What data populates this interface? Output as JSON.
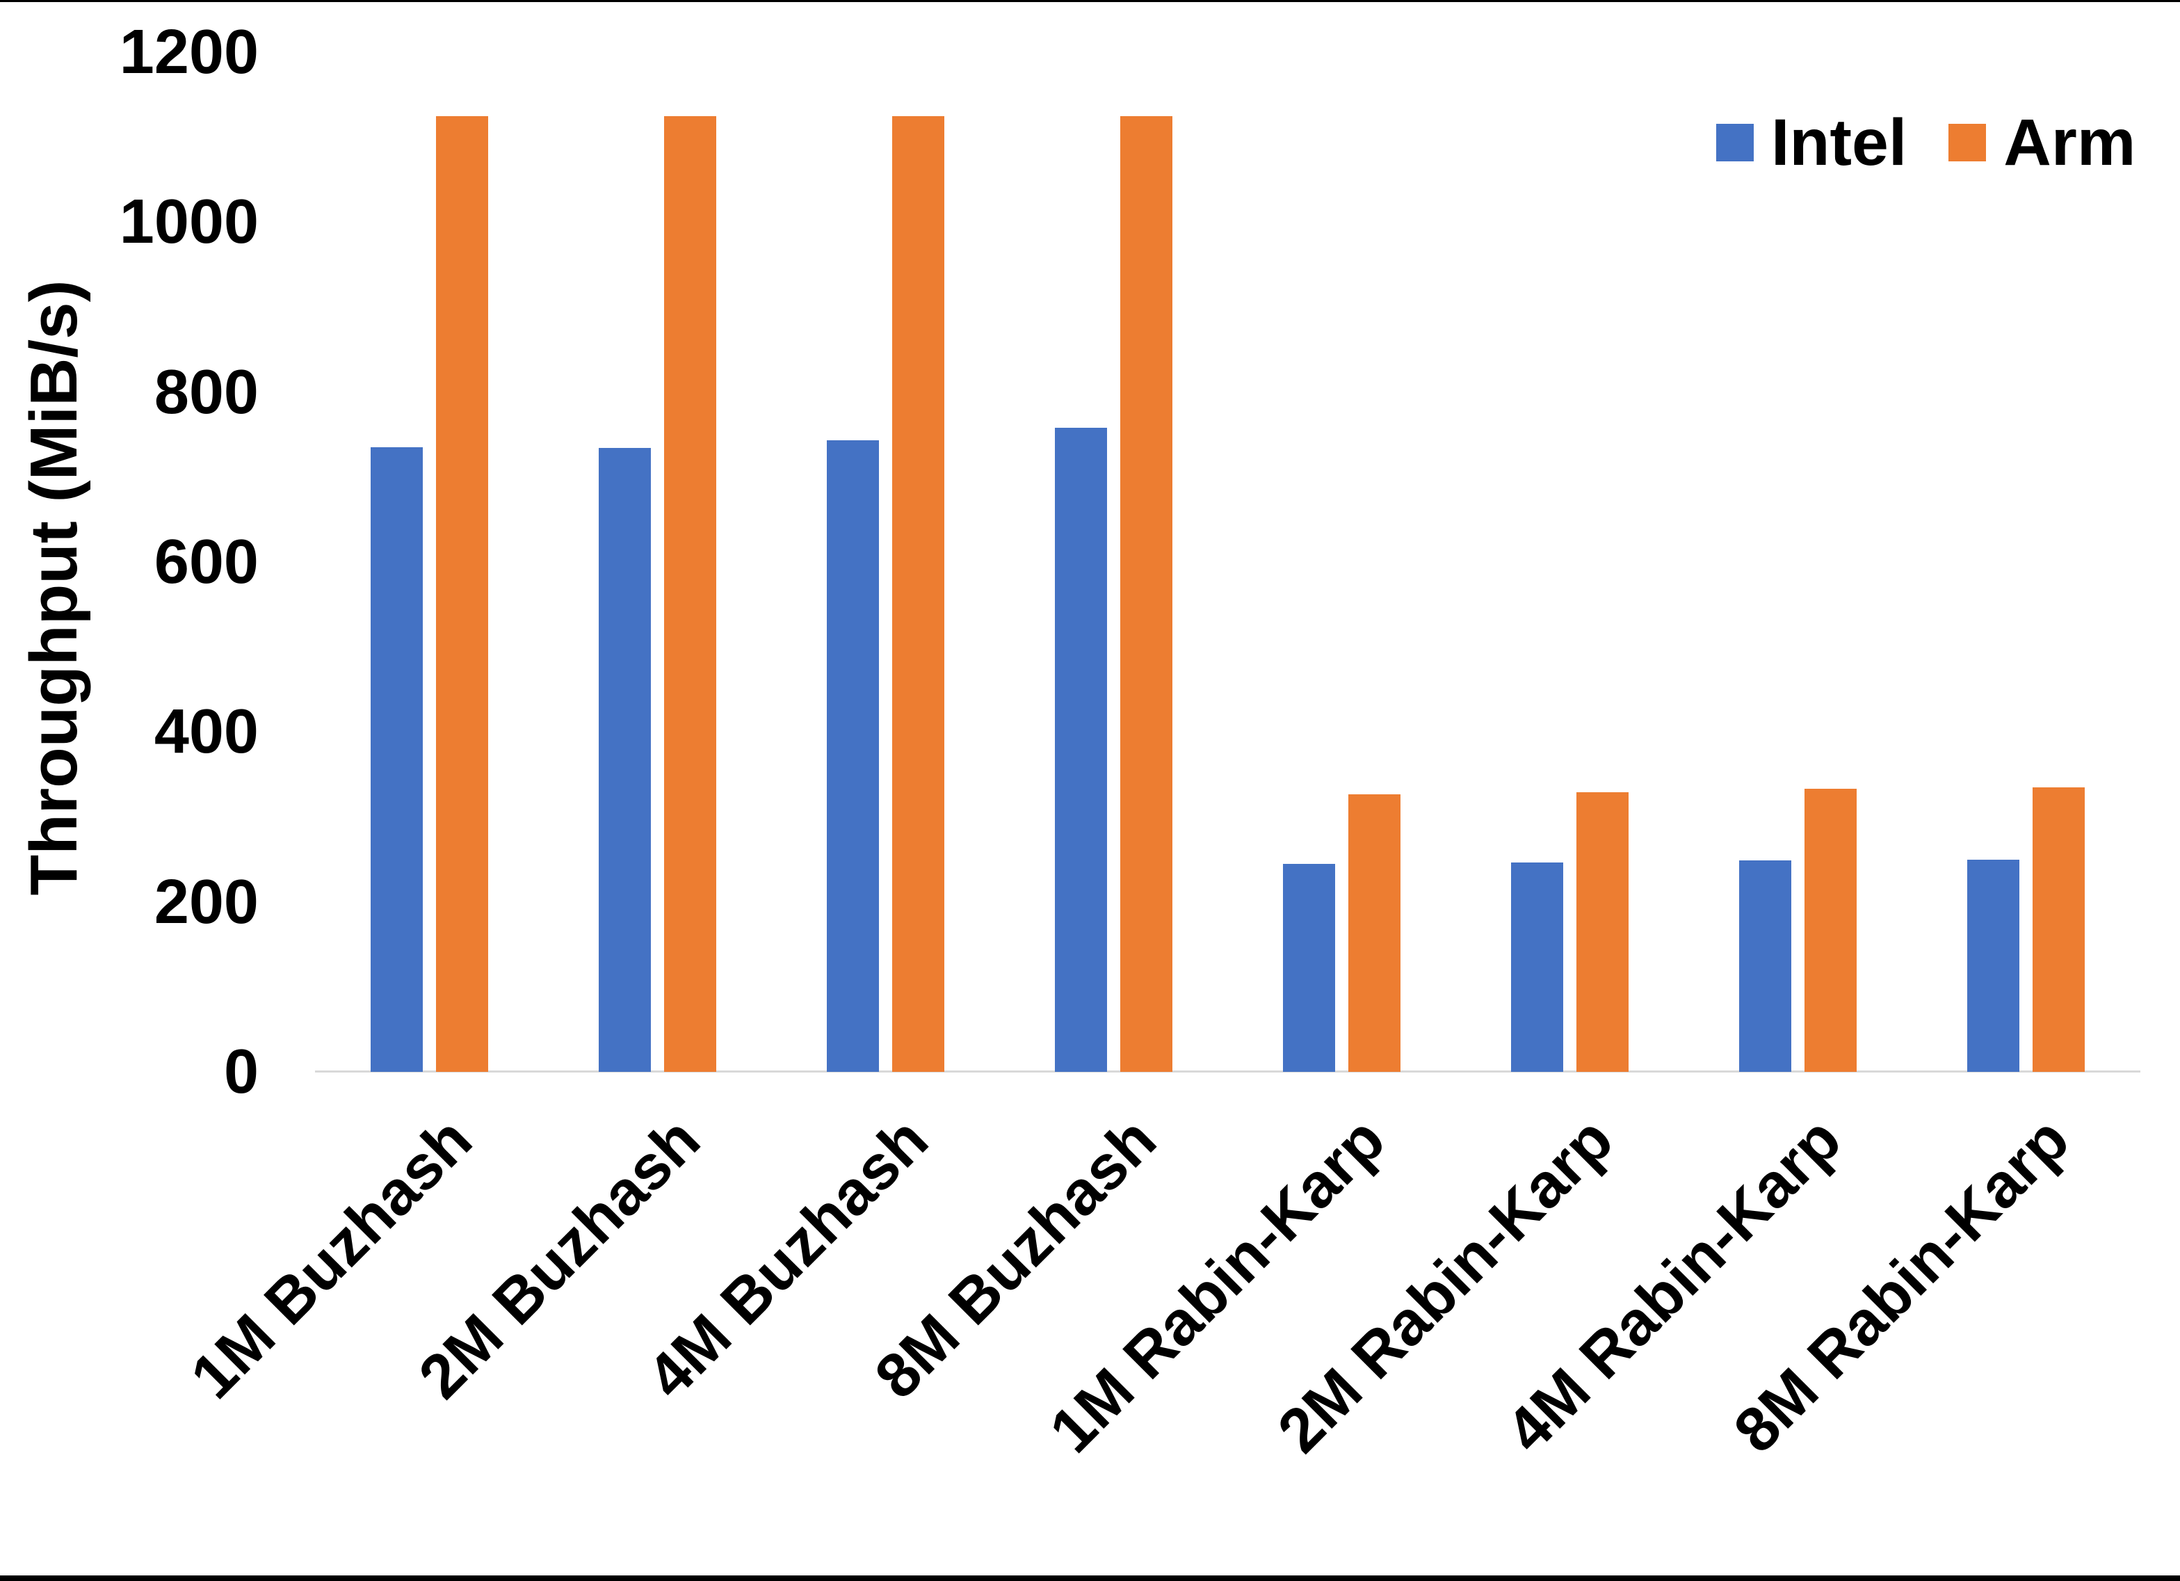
{
  "chart_data": {
    "type": "bar",
    "title": "",
    "xlabel": "",
    "ylabel": "Throughput (MiB/s)",
    "categories": [
      "1M Buzhash",
      "2M Buzhash",
      "4M Buzhash",
      "8M Buzhash",
      "1M Rabin-Karp",
      "2M Rabin-Karp",
      "4M Rabin-Karp",
      "8M Rabin-Karp"
    ],
    "series": [
      {
        "name": "Intel",
        "color": "#4472C4",
        "values": [
          735,
          734,
          743,
          758,
          245,
          246,
          249,
          250
        ]
      },
      {
        "name": "Arm",
        "color": "#ED7D31",
        "values": [
          1125,
          1125,
          1125,
          1125,
          327,
          329,
          333,
          335
        ]
      }
    ],
    "ylim": [
      0,
      1200
    ],
    "yticks": [
      0,
      200,
      400,
      600,
      800,
      1000,
      1200
    ],
    "grid": false,
    "legend_position": "top-right"
  },
  "colors": {
    "background": "#FFFFFF",
    "axis_line": "#D9D9D9",
    "text": "#000000",
    "frame": "#000000"
  }
}
